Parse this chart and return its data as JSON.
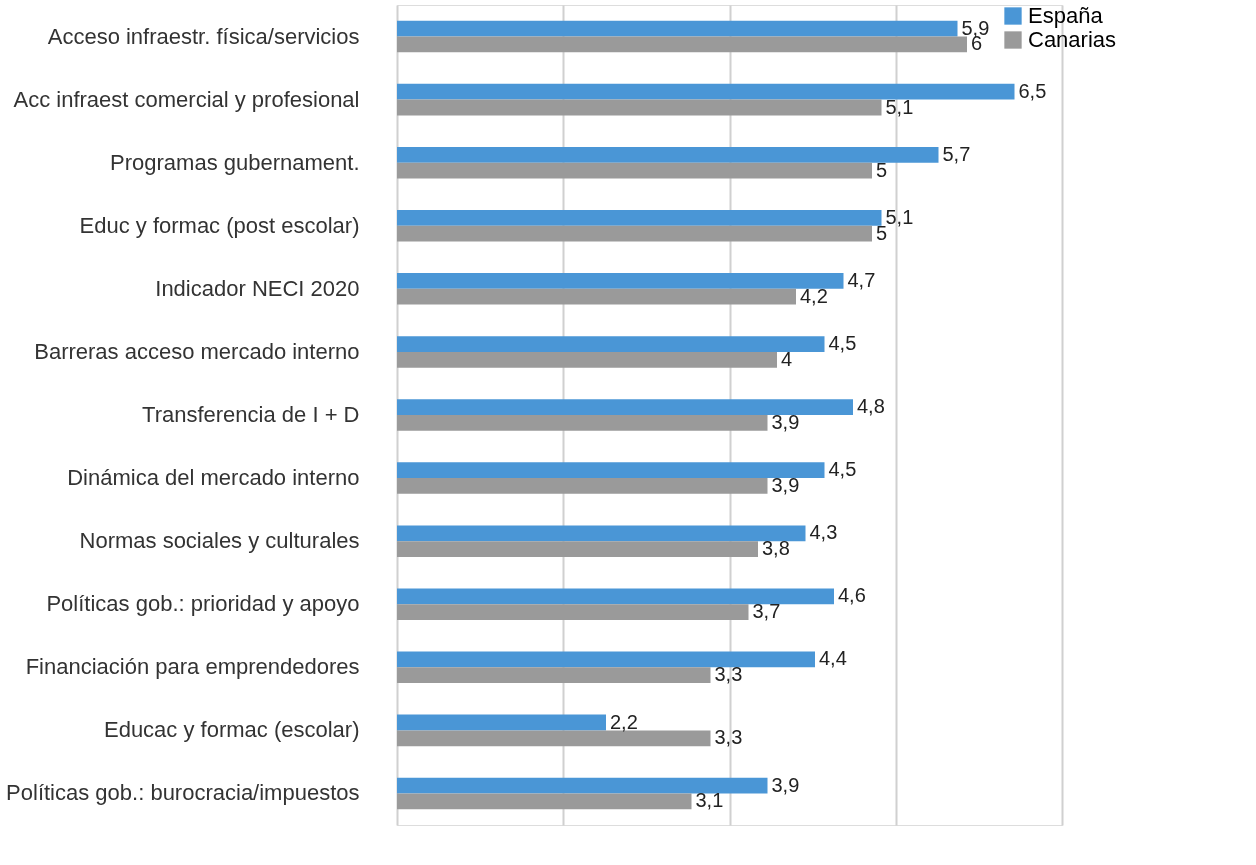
{
  "chart_data": {
    "type": "bar",
    "orientation": "horizontal",
    "categories": [
      "Acceso infraestr. física/servicios",
      "Acc infraest comercial y profesional",
      "Programas gubernament.",
      "Educ y formac (post escolar)",
      "Indicador NECI 2020",
      "Barreras acceso mercado interno",
      "Transferencia de I + D",
      "Dinámica del mercado interno",
      "Normas sociales y culturales",
      "Políticas gob.: prioridad y apoyo",
      "Financiación para emprendedores",
      "Educac y formac (escolar)",
      "Políticas gob.: burocracia/impuestos"
    ],
    "series": [
      {
        "name": "España",
        "color": "#4a96d6",
        "values": [
          5.9,
          6.5,
          5.7,
          5.1,
          4.7,
          4.5,
          4.8,
          4.5,
          4.3,
          4.6,
          4.4,
          2.2,
          3.9
        ],
        "value_labels": [
          "5,9",
          "6,5",
          "5,7",
          "5,1",
          "4,7",
          "4,5",
          "4,8",
          "4,5",
          "4,3",
          "4,6",
          "4,4",
          "2,2",
          "3,9"
        ]
      },
      {
        "name": "Canarias",
        "color": "#9a9a9a",
        "values": [
          6,
          5.1,
          5,
          5,
          4.2,
          4,
          3.9,
          3.9,
          3.8,
          3.7,
          3.3,
          3.3,
          3.1
        ],
        "value_labels": [
          "6",
          "5,1",
          "5",
          "5",
          "4,2",
          "4",
          "3,9",
          "3,9",
          "3,8",
          "3,7",
          "3,3",
          "3,3",
          "3,1"
        ]
      }
    ],
    "xlim": [
      0,
      7
    ],
    "xticks": [
      {
        "value": 0,
        "label": null
      },
      {
        "value": 1.75,
        "label": null
      },
      {
        "value": 3.5,
        "label": null
      },
      {
        "value": 5.25,
        "label": null
      },
      {
        "value": 7,
        "label": null
      }
    ],
    "grid": "x",
    "legend": "right",
    "tick_labels": "y"
  }
}
